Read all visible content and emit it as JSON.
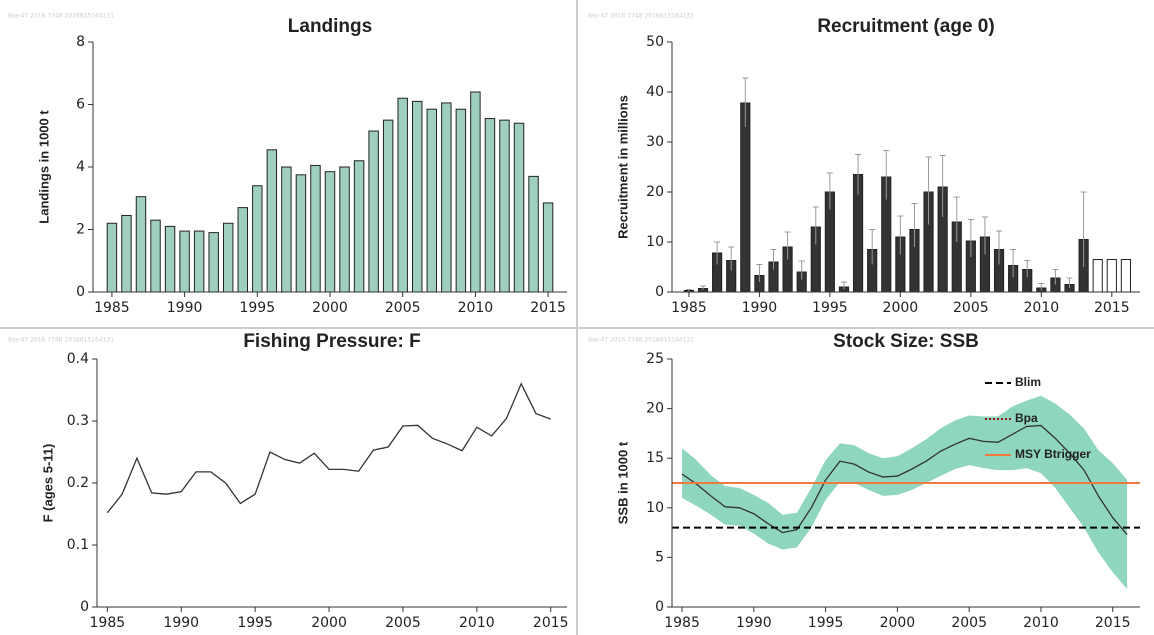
{
  "chart_data": [
    {
      "type": "bar",
      "title": "Landings",
      "ylabel": "Landings in 1000 t",
      "stamp": "Bss-47 2016 7748 2016615164131",
      "series": [
        {
          "color": "#9fcfbd",
          "x": [
            1985,
            1986,
            1987,
            1988,
            1989,
            1990,
            1991,
            1992,
            1993,
            1994,
            1995,
            1996,
            1997,
            1998,
            1999,
            2000,
            2001,
            2002,
            2003,
            2004,
            2005,
            2006,
            2007,
            2008,
            2009,
            2010,
            2011,
            2012,
            2013,
            2014,
            2015
          ],
          "values": [
            2.2,
            2.45,
            3.05,
            2.3,
            2.1,
            1.95,
            1.95,
            1.9,
            2.2,
            2.7,
            3.4,
            4.55,
            4.0,
            3.75,
            4.05,
            3.85,
            4.0,
            4.2,
            5.15,
            5.5,
            6.2,
            6.1,
            5.85,
            6.05,
            5.85,
            6.4,
            5.55,
            5.5,
            5.4,
            3.7,
            2.85
          ]
        }
      ],
      "xlim": [
        1983.7,
        2016.3
      ],
      "ylim": [
        0,
        8
      ],
      "xticks": [
        1985,
        1990,
        1995,
        2000,
        2005,
        2010,
        2015
      ],
      "yticks": [
        0,
        2,
        4,
        6,
        8
      ]
    },
    {
      "type": "bar",
      "title": "Recruitment (age 0)",
      "ylabel": "Recruitment in millions",
      "stamp": "Bss-47 2016 7748 2016615164131",
      "series": [
        {
          "color": "#333333",
          "x": [
            1985,
            1986,
            1987,
            1988,
            1989,
            1990,
            1991,
            1992,
            1993,
            1994,
            1995,
            1996,
            1997,
            1998,
            1999,
            2000,
            2001,
            2002,
            2003,
            2004,
            2005,
            2006,
            2007,
            2008,
            2009,
            2010,
            2011,
            2012,
            2013
          ],
          "values": [
            0.3,
            0.7,
            7.8,
            6.3,
            37.8,
            3.3,
            6,
            9,
            4,
            13,
            20,
            1,
            23.5,
            8.5,
            23,
            11,
            12.5,
            20,
            21,
            14,
            10.2,
            11,
            8.5,
            5.3,
            4.5,
            0.8,
            2.8,
            1.5,
            10.5
          ],
          "upper": [
            0.5,
            1.2,
            10,
            9,
            42.8,
            5.5,
            8.5,
            12,
            6.2,
            17,
            23.8,
            2,
            27.5,
            12.5,
            28.3,
            15.2,
            17.7,
            27,
            27.3,
            19,
            14.5,
            15,
            12.2,
            8.5,
            6.3,
            1.7,
            4.5,
            2.8,
            20
          ],
          "lower": [
            0.1,
            0.4,
            5.5,
            4.3,
            33,
            2,
            4.5,
            6.5,
            2.5,
            9.5,
            16.5,
            0.5,
            19.5,
            5.5,
            18.5,
            7.5,
            9,
            13.5,
            15,
            10,
            7,
            7.5,
            5.5,
            3,
            3,
            0.3,
            1.5,
            0.8,
            5
          ]
        },
        {
          "color": "#ffffff",
          "x": [
            2014,
            2015,
            2016
          ],
          "values": [
            6.5,
            6.5,
            6.5
          ]
        }
      ],
      "xlim": [
        1983.8,
        2017
      ],
      "ylim": [
        0,
        50
      ],
      "xticks": [
        1985,
        1990,
        1995,
        2000,
        2005,
        2010,
        2015
      ],
      "yticks": [
        0,
        10,
        20,
        30,
        40,
        50
      ]
    },
    {
      "type": "line",
      "title": "Fishing Pressure: F",
      "ylabel": "F (ages 5-11)",
      "stamp": "Bss-47 2016 7748 2016615164131",
      "series": [
        {
          "color": "#333333",
          "x": [
            1985,
            1986,
            1987,
            1988,
            1989,
            1990,
            1991,
            1992,
            1993,
            1994,
            1995,
            1996,
            1997,
            1998,
            1999,
            2000,
            2001,
            2002,
            2003,
            2004,
            2005,
            2006,
            2007,
            2008,
            2009,
            2010,
            2011,
            2012,
            2013,
            2014,
            2015
          ],
          "values": [
            0.152,
            0.182,
            0.24,
            0.184,
            0.182,
            0.186,
            0.218,
            0.218,
            0.2,
            0.167,
            0.182,
            0.25,
            0.238,
            0.232,
            0.248,
            0.222,
            0.222,
            0.219,
            0.253,
            0.258,
            0.292,
            0.293,
            0.272,
            0.263,
            0.252,
            0.29,
            0.276,
            0.304,
            0.36,
            0.312,
            0.303
          ]
        }
      ],
      "xlim": [
        1984.3,
        2016.1
      ],
      "ylim": [
        0,
        0.4
      ],
      "xticks": [
        1985,
        1990,
        1995,
        2000,
        2005,
        2010,
        2015
      ],
      "yticks": [
        0,
        0.1,
        0.2,
        0.3,
        0.4
      ]
    },
    {
      "type": "line",
      "title": "Stock Size: SSB",
      "ylabel": "SSB in 1000 t",
      "stamp": "Bss-47 2016 7748 2016615164131",
      "series": [
        {
          "color": "#333333",
          "band_color": "#8fd6c0",
          "x": [
            1985,
            1986,
            1987,
            1988,
            1989,
            1990,
            1991,
            1992,
            1993,
            1994,
            1995,
            1996,
            1997,
            1998,
            1999,
            2000,
            2001,
            2002,
            2003,
            2004,
            2005,
            2006,
            2007,
            2008,
            2009,
            2010,
            2011,
            2012,
            2013,
            2014,
            2015,
            2016
          ],
          "values": [
            13.4,
            12.4,
            11.2,
            10.1,
            10.0,
            9.4,
            8.4,
            7.5,
            7.8,
            10.0,
            12.8,
            14.7,
            14.4,
            13.6,
            13.1,
            13.2,
            13.9,
            14.7,
            15.7,
            16.4,
            17.0,
            16.7,
            16.6,
            17.4,
            18.2,
            18.3,
            17.0,
            15.5,
            13.8,
            11.2,
            9.0,
            7.3
          ],
          "lower": [
            11,
            10.2,
            9.3,
            8.3,
            8.2,
            7.4,
            6.4,
            5.8,
            6,
            8,
            10.8,
            12.6,
            12.5,
            11.8,
            11.2,
            11.3,
            11.8,
            12.5,
            13.2,
            13.9,
            14.3,
            14,
            13.8,
            13.8,
            14,
            13.5,
            12,
            10,
            8,
            5.5,
            3.5,
            1.8
          ],
          "upper": [
            16,
            14.8,
            13.3,
            12.2,
            12,
            11.3,
            10.5,
            9.3,
            9.5,
            12,
            14.8,
            16.5,
            16.3,
            15.5,
            15,
            15.2,
            16,
            16.9,
            18,
            18.8,
            19.3,
            19.2,
            19.2,
            20.2,
            20.8,
            21.3,
            20.5,
            19.4,
            18,
            15.8,
            14.5,
            12.8
          ]
        }
      ],
      "reference_lines": [
        {
          "name": "Blim",
          "value": 8,
          "color": "#000000",
          "style": "dashed"
        },
        {
          "name": "Bpa",
          "value": 12.5,
          "color": "#8b1a1a",
          "style": "dotted"
        },
        {
          "name": "MSY Btrigger",
          "value": 12.5,
          "color": "#f07a40",
          "style": "solid"
        }
      ],
      "legend": "upper right",
      "xlim": [
        1984.3,
        2016.9
      ],
      "ylim": [
        0,
        25
      ],
      "xticks": [
        1985,
        1990,
        1995,
        2000,
        2005,
        2010,
        2015
      ],
      "yticks": [
        0,
        5,
        10,
        15,
        20,
        25
      ]
    }
  ]
}
